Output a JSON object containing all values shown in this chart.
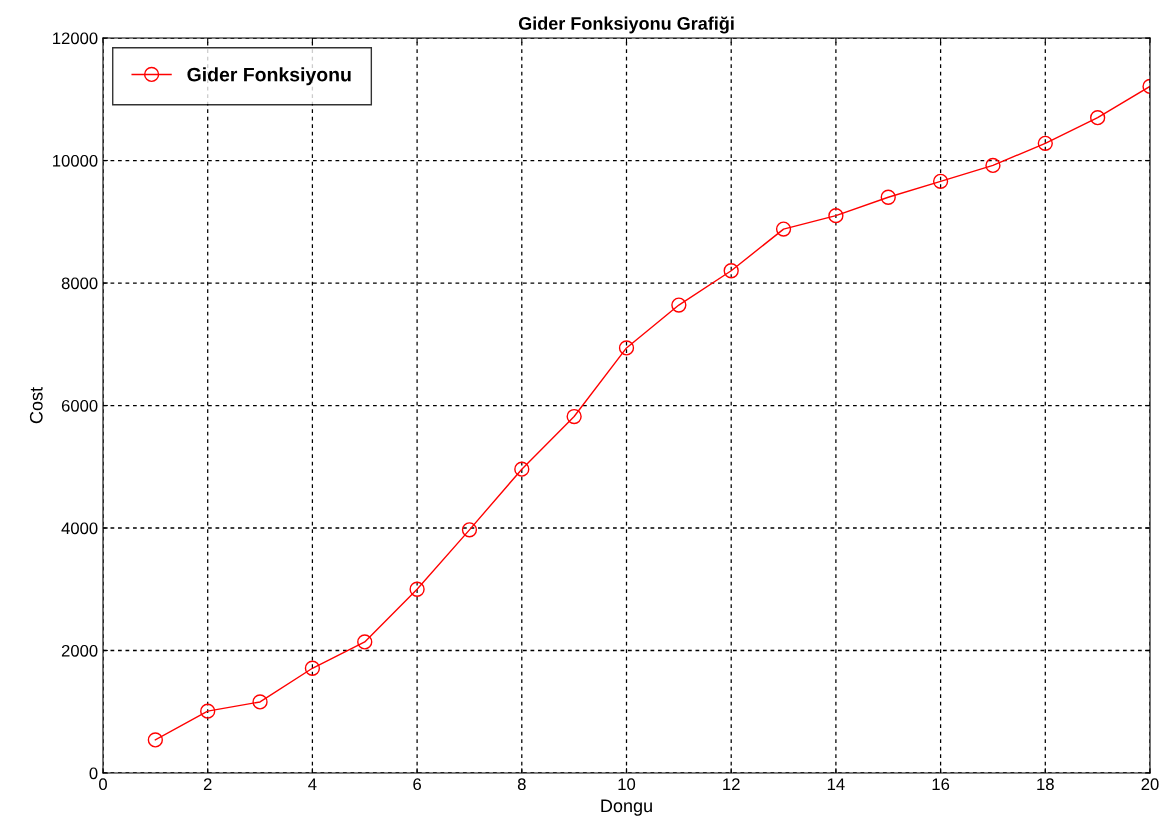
{
  "chart_data": {
    "type": "line",
    "title": "Gider Fonksiyonu Grafiği",
    "xlabel": "Dongu",
    "ylabel": "Cost",
    "x": [
      1,
      2,
      3,
      4,
      5,
      6,
      7,
      8,
      9,
      10,
      11,
      12,
      13,
      14,
      15,
      16,
      17,
      18,
      19,
      20
    ],
    "series": [
      {
        "name": "Gider Fonksiyonu",
        "color": "#ff0000",
        "values": [
          540,
          1010,
          1160,
          1710,
          2140,
          3000,
          3970,
          4960,
          5820,
          6940,
          7640,
          8200,
          8880,
          9100,
          9400,
          9660,
          9920,
          10280,
          10700,
          11210
        ]
      }
    ],
    "xlim": [
      0,
      20
    ],
    "xticks": [
      0,
      2,
      4,
      6,
      8,
      10,
      12,
      14,
      16,
      18,
      20
    ],
    "ylim": [
      0,
      12000
    ],
    "yticks": [
      0,
      2000,
      4000,
      6000,
      8000,
      10000,
      12000
    ],
    "grid": true,
    "legend": "top left",
    "marker": "circle",
    "line_style": "solid"
  }
}
